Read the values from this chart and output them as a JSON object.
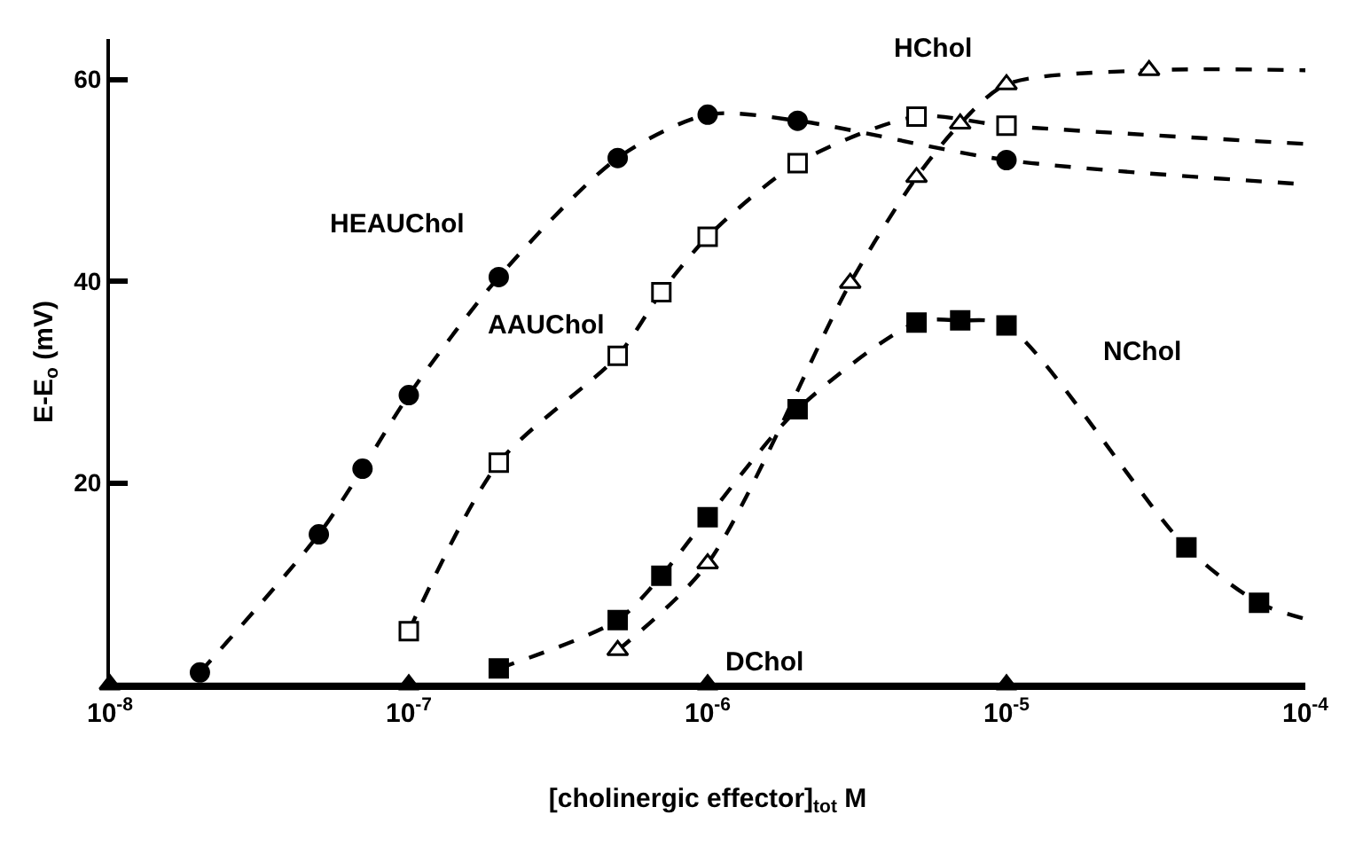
{
  "chart_data": {
    "type": "line",
    "xlabel": "[cholinergic effector]$_{tot}$ M",
    "ylabel": "E-E$_{o}$ (mV)",
    "log": "x",
    "line_style": "dashed",
    "xlim": [
      1e-08,
      0.0001
    ],
    "xticks": [
      {
        "value": 1e-08,
        "label": "10$^{-8}$"
      },
      {
        "value": 1e-07,
        "label": "10$^{-7}$"
      },
      {
        "value": 1e-06,
        "label": "10$^{-6}$"
      },
      {
        "value": 1e-05,
        "label": "10$^{-5}$"
      },
      {
        "value": 0.0001,
        "label": "10$^{-4}$"
      }
    ],
    "ylim": [
      0,
      64
    ],
    "yticks": [
      20,
      40,
      60
    ],
    "series": [
      {
        "name": "HEAUChol",
        "color": "#000000",
        "marker": "circle",
        "x": [
          2e-08,
          5e-08,
          7e-08,
          1e-07,
          2e-07,
          5e-07,
          1e-06,
          2e-06,
          1e-05,
          0.0001
        ],
        "values": [
          1.2,
          14.9,
          21.4,
          28.7,
          40.4,
          52.2,
          56.5,
          55.9,
          52.0,
          49.6
        ]
      },
      {
        "name": "AAUChol",
        "color": "#ffffff",
        "marker": "square",
        "x": [
          1e-07,
          2e-07,
          5e-07,
          7e-07,
          1e-06,
          2e-06,
          5e-06,
          1e-05,
          0.0001
        ],
        "values": [
          5.3,
          22.0,
          32.6,
          38.9,
          44.4,
          51.7,
          56.3,
          55.4,
          53.6
        ]
      },
      {
        "name": "HChol",
        "color": "#ffffff",
        "marker": "triangle",
        "x": [
          5e-07,
          1e-06,
          3e-06,
          5e-06,
          7e-06,
          1e-05,
          3e-05,
          0.0001
        ],
        "values": [
          3.4,
          12.0,
          39.8,
          50.3,
          55.6,
          59.5,
          60.9,
          60.9
        ]
      },
      {
        "name": "NChol",
        "color": "#000000",
        "marker": "square",
        "x": [
          2e-07,
          5e-07,
          7e-07,
          1e-06,
          2e-06,
          5e-06,
          7e-06,
          1e-05,
          4e-05,
          7e-05,
          0.0001
        ],
        "values": [
          1.6,
          6.4,
          10.8,
          16.6,
          27.3,
          35.9,
          36.1,
          35.6,
          13.6,
          8.1,
          6.5
        ]
      },
      {
        "name": "DChol",
        "color": "#000000",
        "marker": "triangle",
        "line_style": "solid",
        "x": [
          1e-08,
          1e-07,
          1e-06,
          1e-05,
          0.0001
        ],
        "values": [
          0,
          0,
          0,
          0,
          0
        ]
      }
    ]
  }
}
